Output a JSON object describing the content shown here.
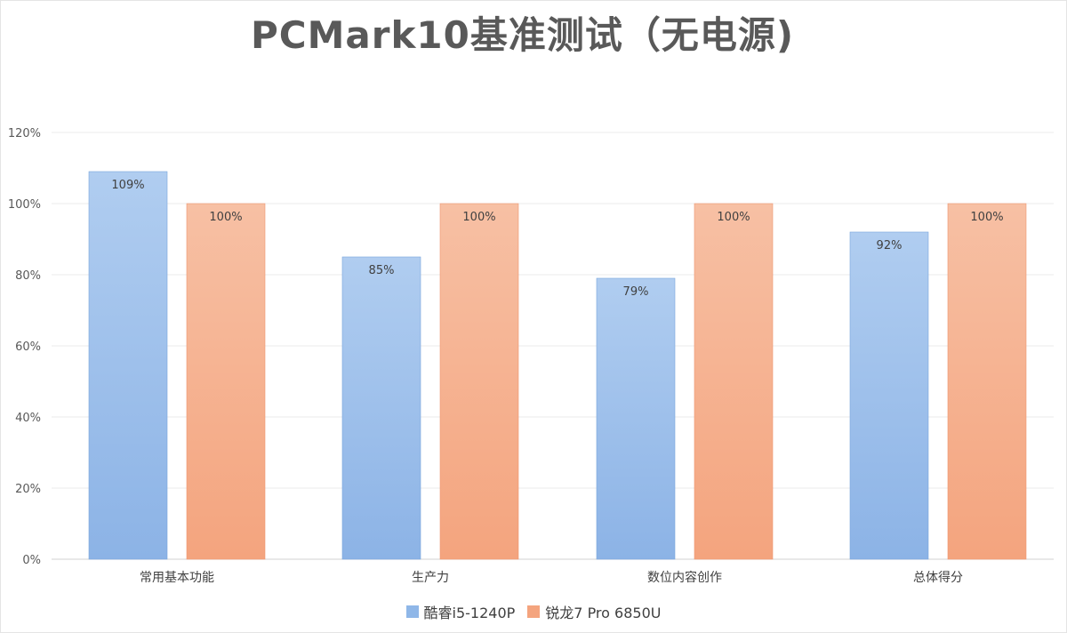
{
  "chart_data": {
    "type": "bar",
    "title": "PCMark10基准测试（无电源)",
    "categories": [
      "常用基本功能",
      "生产力",
      "数位内容创作",
      "总体得分"
    ],
    "series": [
      {
        "name": "酷睿i5-1240P",
        "values": [
          109,
          85,
          79,
          92
        ],
        "labels": [
          "109%",
          "85%",
          "79%",
          "92%"
        ],
        "color": "#8fb7e8"
      },
      {
        "name": "锐龙7 Pro 6850U",
        "values": [
          100,
          100,
          100,
          100
        ],
        "labels": [
          "100%",
          "100%",
          "100%",
          "100%"
        ],
        "color": "#f4a47e"
      }
    ],
    "ylim": [
      0,
      120
    ],
    "yticks": [
      0,
      20,
      40,
      60,
      80,
      100,
      120
    ],
    "ytick_labels": [
      "0%",
      "20%",
      "40%",
      "60%",
      "80%",
      "100%",
      "120%"
    ],
    "grid": true,
    "legend": "bottom-center"
  }
}
